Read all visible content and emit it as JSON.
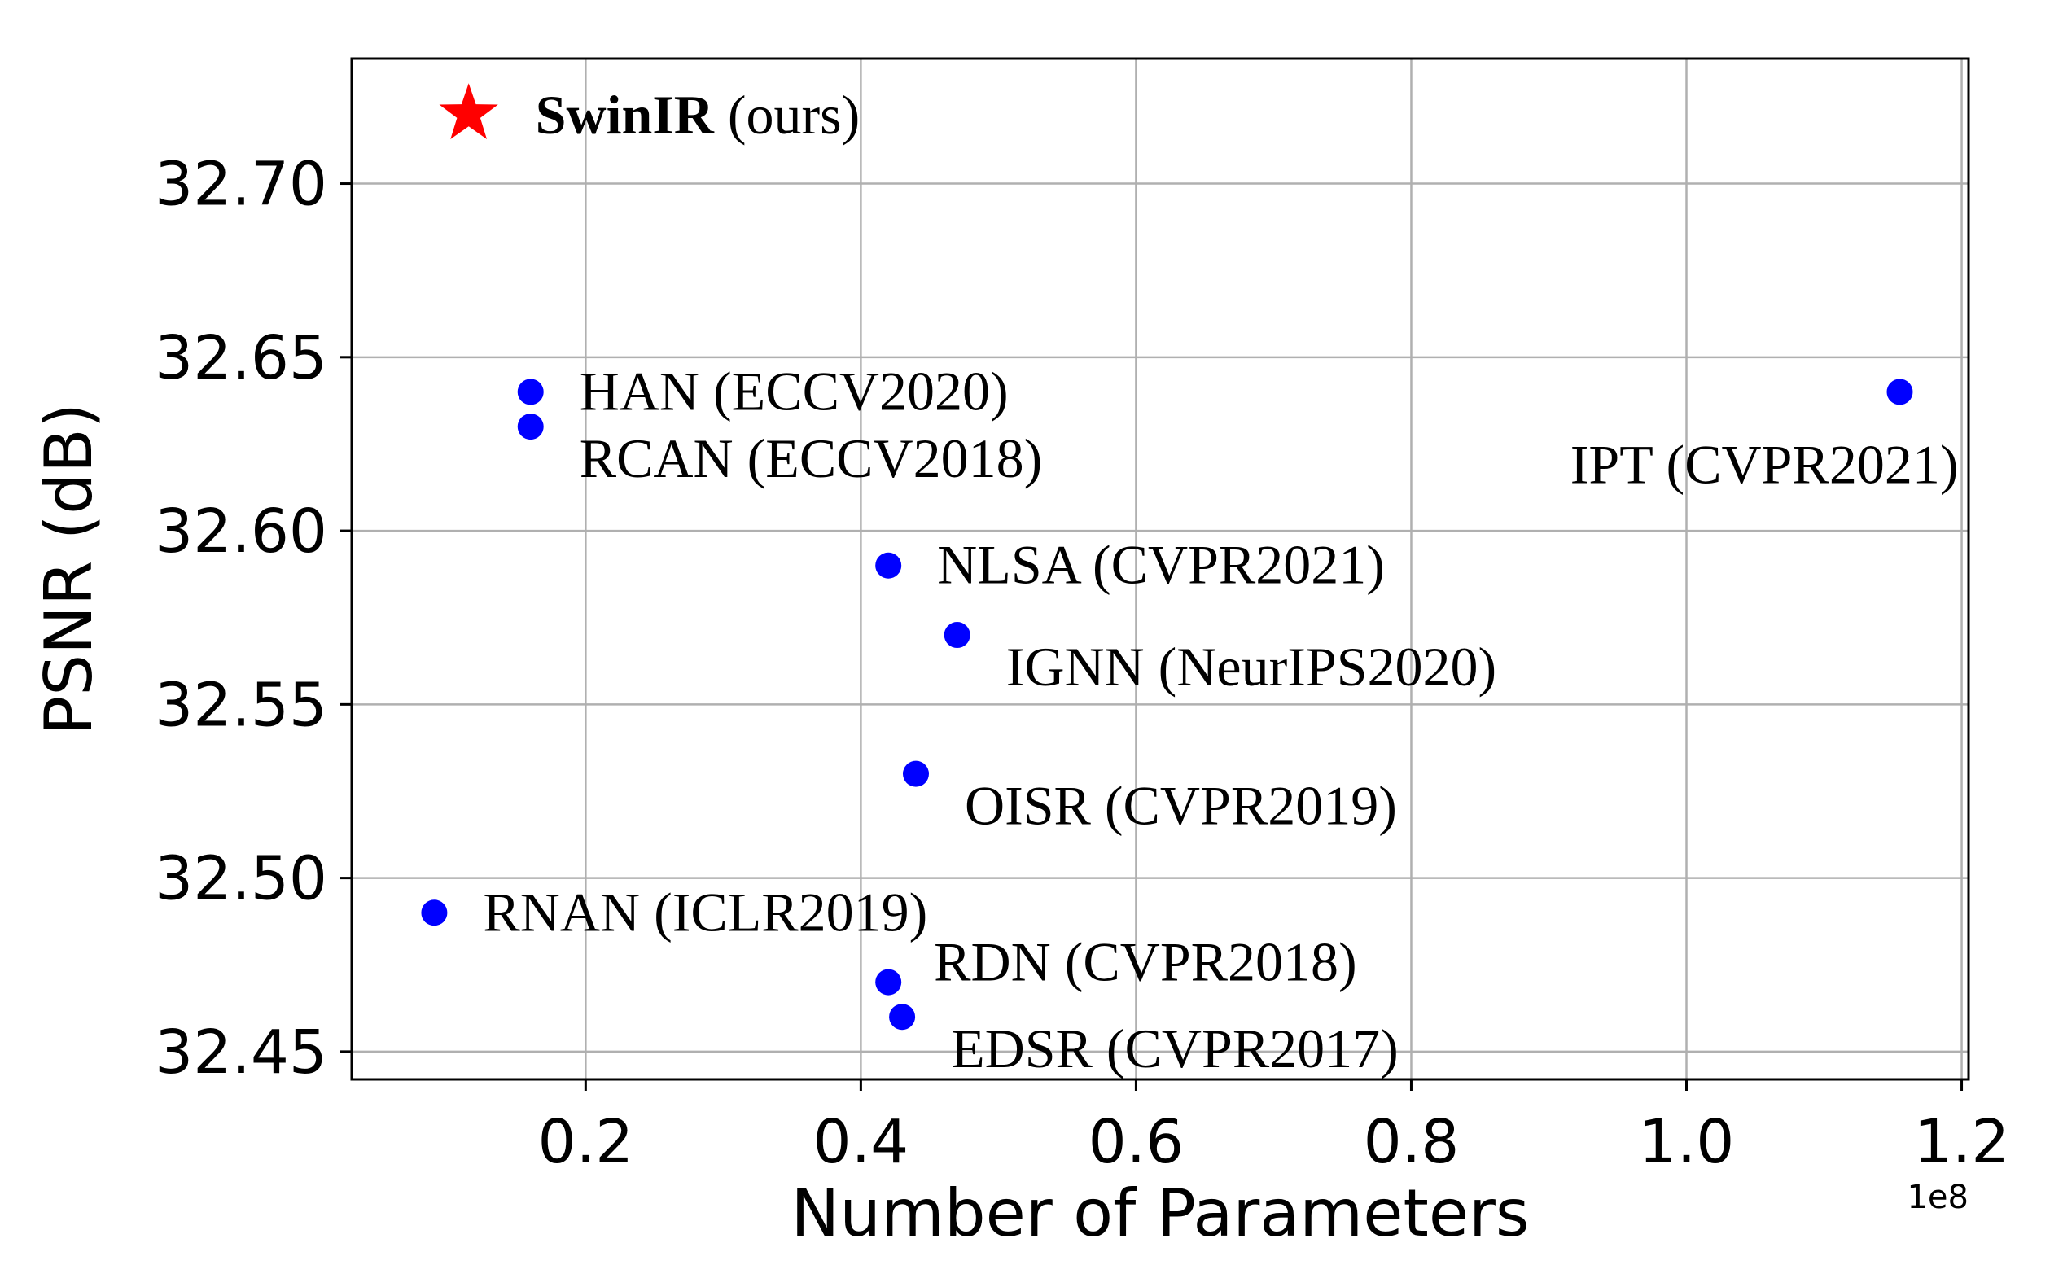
{
  "chart_data": {
    "type": "scatter",
    "xlabel": "Number of Parameters",
    "ylabel": "PSNR (dB)",
    "x_offset_label": "1e8",
    "xlim": [
      0.03,
      1.205
    ],
    "ylim": [
      32.442,
      32.736
    ],
    "x_ticks": [
      0.2,
      0.4,
      0.6,
      0.8,
      1.0,
      1.2
    ],
    "x_tick_labels": [
      "0.2",
      "0.4",
      "0.6",
      "0.8",
      "1.0",
      "1.2"
    ],
    "y_ticks": [
      32.45,
      32.5,
      32.55,
      32.6,
      32.65,
      32.7
    ],
    "y_tick_labels": [
      "32.45",
      "32.50",
      "32.55",
      "32.60",
      "32.65",
      "32.70"
    ],
    "grid": true,
    "highlight": {
      "name": "SwinIR",
      "suffix": "(ours)",
      "x": 0.115,
      "y": 32.72,
      "marker": "star",
      "color": "#ff0000"
    },
    "points_color": "#0000ff",
    "points": [
      {
        "label": "HAN (ECCV2020)",
        "x": 0.16,
        "y": 32.64,
        "label_pos": "right"
      },
      {
        "label": "RCAN (ECCV2018)",
        "x": 0.16,
        "y": 32.63,
        "label_pos": "right-below"
      },
      {
        "label": "IPT (CVPR2021)",
        "x": 1.155,
        "y": 32.64,
        "label_pos": "left-below"
      },
      {
        "label": "NLSA (CVPR2021)",
        "x": 0.42,
        "y": 32.59,
        "label_pos": "right"
      },
      {
        "label": "IGNN (NeurIPS2020)",
        "x": 0.47,
        "y": 32.57,
        "label_pos": "right-below"
      },
      {
        "label": "OISR (CVPR2019)",
        "x": 0.44,
        "y": 32.53,
        "label_pos": "right-below"
      },
      {
        "label": "RNAN (ICLR2019)",
        "x": 0.09,
        "y": 32.49,
        "label_pos": "right"
      },
      {
        "label": "RDN (CVPR2018)",
        "x": 0.42,
        "y": 32.47,
        "label_pos": "right-above"
      },
      {
        "label": "EDSR (CVPR2017)",
        "x": 0.43,
        "y": 32.46,
        "label_pos": "right-below"
      }
    ]
  }
}
